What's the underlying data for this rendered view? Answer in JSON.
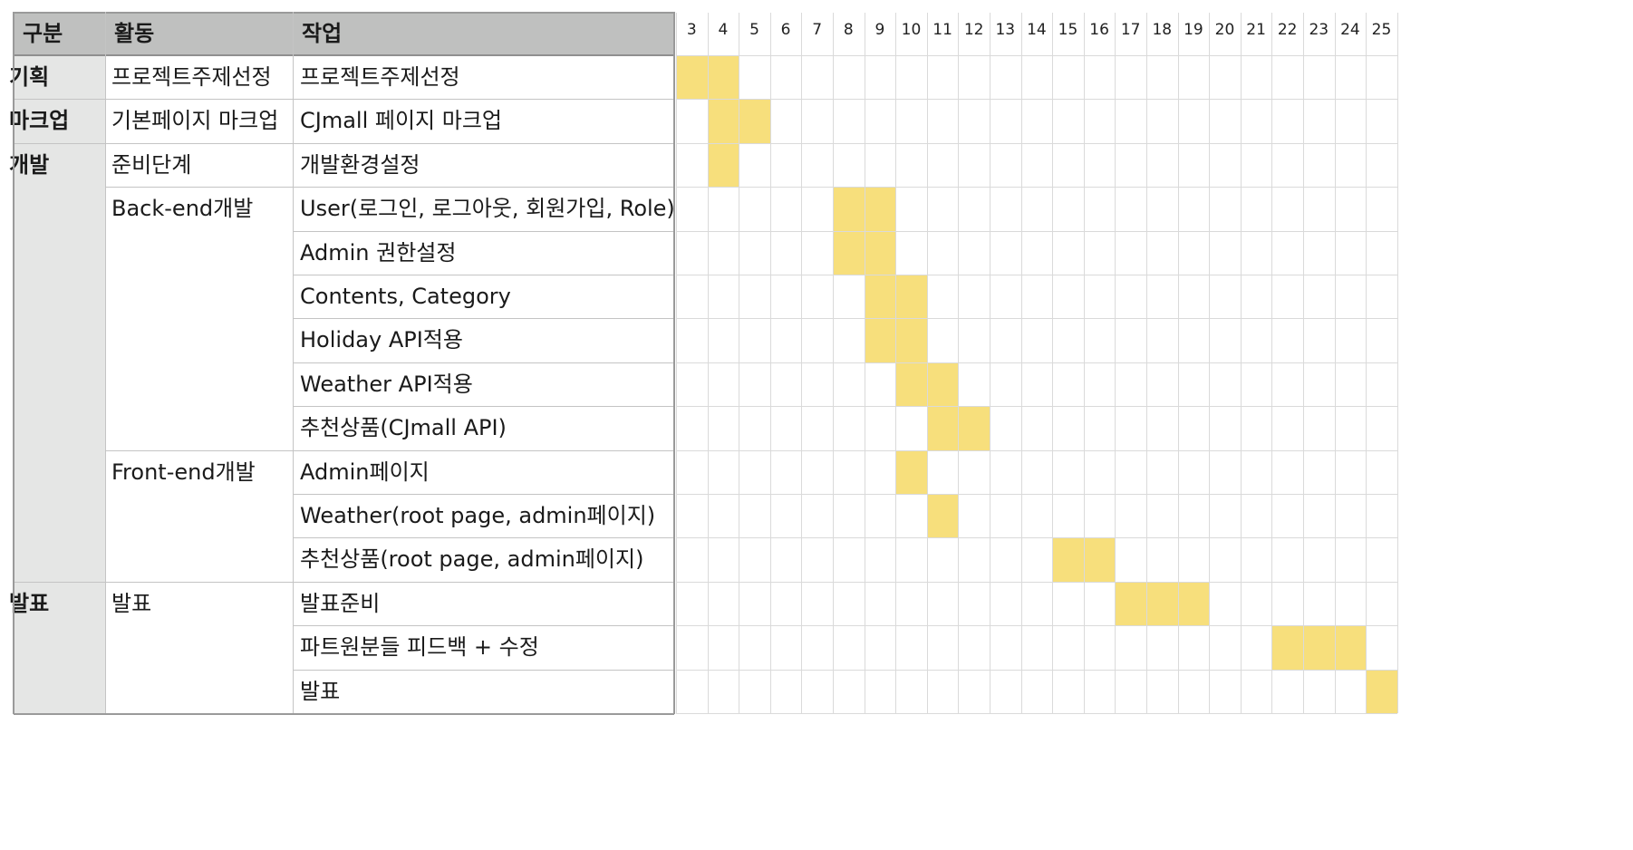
{
  "header": {
    "gubun": "구분",
    "activity": "활동",
    "task": "작업"
  },
  "days": [
    "3",
    "4",
    "5",
    "6",
    "7",
    "8",
    "9",
    "10",
    "11",
    "12",
    "13",
    "14",
    "15",
    "16",
    "17",
    "18",
    "19",
    "20",
    "21",
    "22",
    "23",
    "24",
    "25"
  ],
  "groups": [
    {
      "label": "기획",
      "startRow": 0,
      "rows": 1
    },
    {
      "label": "마크업",
      "startRow": 1,
      "rows": 1
    },
    {
      "label": "개발",
      "startRow": 2,
      "rows": 10
    },
    {
      "label": "발표",
      "startRow": 12,
      "rows": 3
    }
  ],
  "activities": [
    {
      "label": "프로젝트주제선정",
      "startRow": 0,
      "rows": 1
    },
    {
      "label": "기본페이지 마크업",
      "startRow": 1,
      "rows": 1
    },
    {
      "label": "준비단계",
      "startRow": 2,
      "rows": 1
    },
    {
      "label": "Back-end개발",
      "startRow": 3,
      "rows": 6
    },
    {
      "label": "Front-end개발",
      "startRow": 9,
      "rows": 3
    },
    {
      "label": "발표",
      "startRow": 12,
      "rows": 3
    }
  ],
  "tasks": [
    {
      "label": "프로젝트주제선정",
      "days": [
        "3",
        "4"
      ]
    },
    {
      "label": "CJmall 페이지 마크업",
      "days": [
        "4",
        "5"
      ]
    },
    {
      "label": "개발환경설정",
      "days": [
        "4"
      ]
    },
    {
      "label": "User(로그인, 로그아웃, 회원가입, Role)",
      "days": [
        "8",
        "9"
      ]
    },
    {
      "label": "Admin 권한설정",
      "days": [
        "8",
        "9"
      ]
    },
    {
      "label": "Contents, Category",
      "days": [
        "9",
        "10"
      ]
    },
    {
      "label": "Holiday API적용",
      "days": [
        "9",
        "10"
      ]
    },
    {
      "label": "Weather API적용",
      "days": [
        "10",
        "11"
      ]
    },
    {
      "label": "추천상품(CJmall API)",
      "days": [
        "11",
        "12"
      ]
    },
    {
      "label": "Admin페이지",
      "days": [
        "10"
      ]
    },
    {
      "label": "Weather(root page, admin페이지)",
      "days": [
        "11"
      ]
    },
    {
      "label": "추천상품(root page, admin페이지)",
      "days": [
        "15",
        "16"
      ]
    },
    {
      "label": "발표준비",
      "days": [
        "17",
        "18",
        "19"
      ]
    },
    {
      "label": "파트원분들 피드백 + 수정",
      "days": [
        "22",
        "23",
        "24"
      ]
    },
    {
      "label": "발표",
      "days": [
        "25"
      ]
    }
  ],
  "colors": {
    "header_bg": "#bfc0bf",
    "group_bg": "#e5e6e5",
    "bar_fill": "#f7df7c",
    "grid_line": "#dadada",
    "border_dark": "#9a9a9a"
  }
}
